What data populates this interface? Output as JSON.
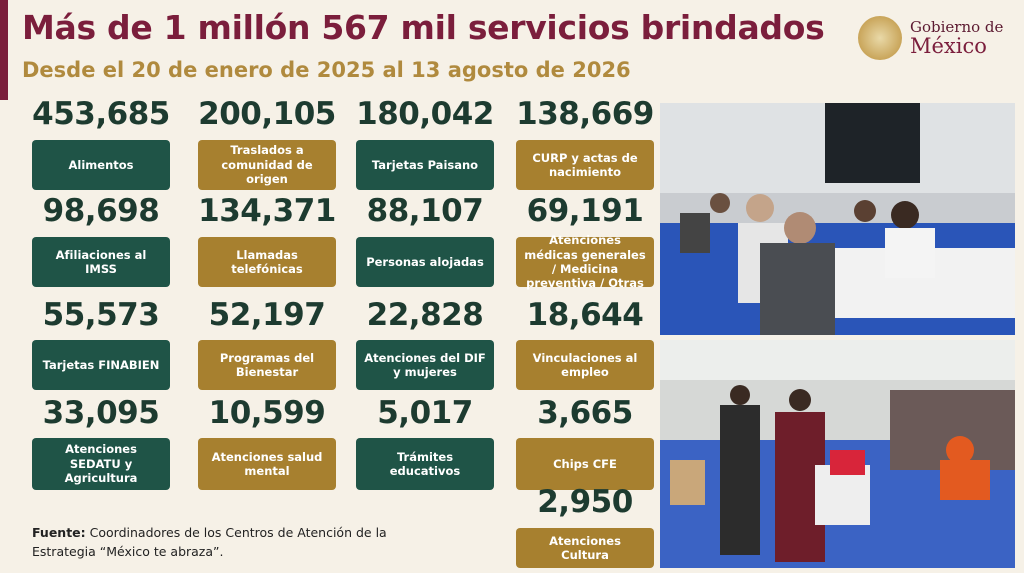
{
  "header": {
    "title": "Más de 1 millón 567 mil servicios brindados",
    "subtitle": "Desde el 20 de enero de 2025 al 13 agosto de 2026"
  },
  "logo": {
    "line1": "Gobierno de",
    "line2": "México"
  },
  "cards": [
    {
      "value": "453,685",
      "label": "Alimentos"
    },
    {
      "value": "200,105",
      "label": "Traslados a comunidad de origen"
    },
    {
      "value": "180,042",
      "label": "Tarjetas Paisano"
    },
    {
      "value": "138,669",
      "label": "CURP y actas de nacimiento"
    },
    {
      "value": "98,698",
      "label": "Afiliaciones al IMSS"
    },
    {
      "value": "134,371",
      "label": "Llamadas telefónicas"
    },
    {
      "value": "88,107",
      "label": "Personas alojadas"
    },
    {
      "value": "69,191",
      "label": "Atenciones médicas generales / Medicina preventiva / Otras"
    },
    {
      "value": "55,573",
      "label": "Tarjetas FINABIEN"
    },
    {
      "value": "52,197",
      "label": "Programas del Bienestar"
    },
    {
      "value": "22,828",
      "label": "Atenciones del DIF y mujeres"
    },
    {
      "value": "18,644",
      "label": "Vinculaciones al empleo"
    },
    {
      "value": "33,095",
      "label": "Atenciones SEDATU y Agricultura"
    },
    {
      "value": "10,599",
      "label": "Atenciones salud mental"
    },
    {
      "value": "5,017",
      "label": "Trámites educativos"
    },
    {
      "value": "3,665",
      "label": "Chips CFE"
    },
    {
      "value": "2,950",
      "label": "Atenciones Cultura"
    }
  ],
  "source": {
    "label": "Fuente:",
    "text": "Coordinadores de los Centros de Atención de la Estrategia “México te abraza”."
  }
}
